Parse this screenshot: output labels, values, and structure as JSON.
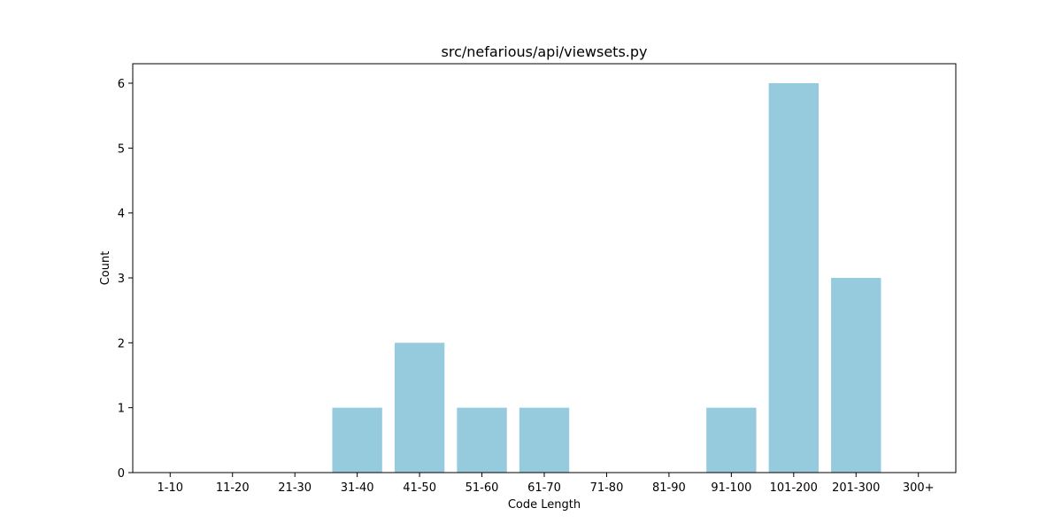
{
  "chart_data": {
    "type": "bar",
    "title": "src/nefarious/api/viewsets.py",
    "xlabel": "Code Length",
    "ylabel": "Count",
    "categories": [
      "1-10",
      "11-20",
      "21-30",
      "31-40",
      "41-50",
      "51-60",
      "61-70",
      "71-80",
      "81-90",
      "91-100",
      "101-200",
      "201-300",
      "300+"
    ],
    "values": [
      0,
      0,
      0,
      1,
      2,
      1,
      1,
      0,
      0,
      1,
      6,
      3,
      0
    ],
    "ylim": [
      0,
      6.3
    ],
    "yticks": [
      0,
      1,
      2,
      3,
      4,
      5,
      6
    ],
    "grid": false,
    "legend": "none",
    "bar_color": "#96cadd",
    "axis_color": "#000000"
  }
}
